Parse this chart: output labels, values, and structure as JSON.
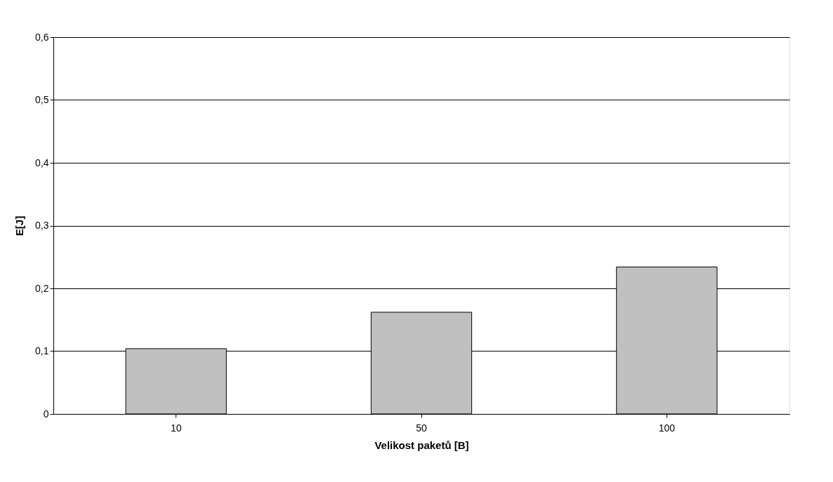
{
  "chart_data": {
    "type": "bar",
    "xlabel": "Velikost paketů [B]",
    "ylabel": "E[J]",
    "categories": [
      "10",
      "50",
      "100"
    ],
    "values": [
      0.104,
      0.162,
      0.234
    ],
    "color": "#c0c0c0",
    "ylim": [
      0,
      0.6
    ],
    "yticks": [
      {
        "value": 0,
        "label": "0"
      },
      {
        "value": 0.1,
        "label": "0,1"
      },
      {
        "value": 0.2,
        "label": "0,2"
      },
      {
        "value": 0.3,
        "label": "0,3"
      },
      {
        "value": 0.4,
        "label": "0,4"
      },
      {
        "value": 0.5,
        "label": "0,5"
      },
      {
        "value": 0.6,
        "label": "0,6"
      }
    ],
    "grid": "y"
  }
}
